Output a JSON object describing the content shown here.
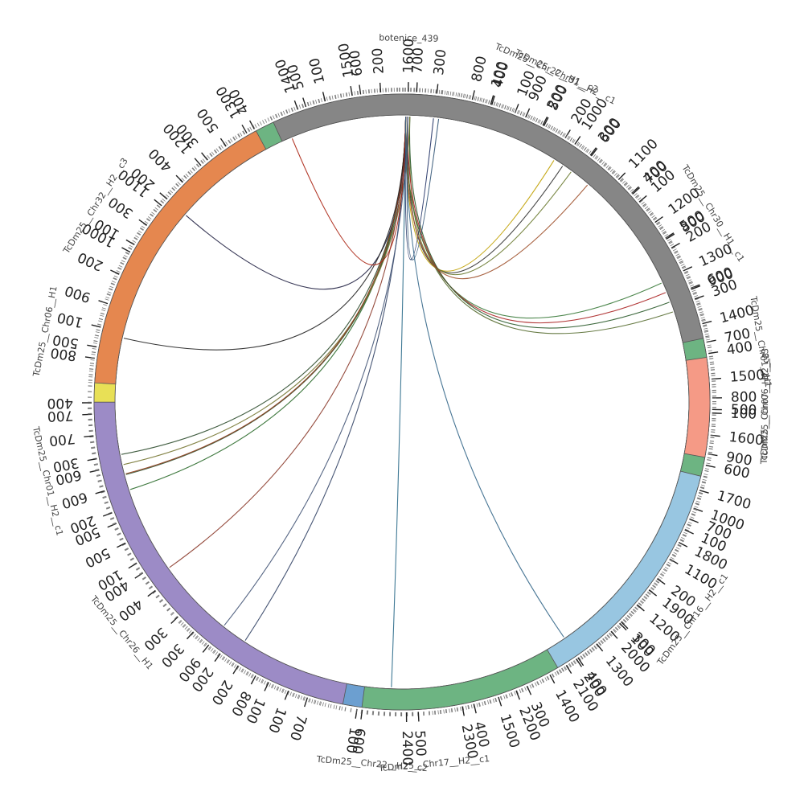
{
  "chart_data": {
    "type": "chord",
    "chromosomes": [
      {
        "name": "botenice_439",
        "length": 30,
        "color": "#a8c8e0",
        "ticks": []
      },
      {
        "name": "TcDm25__Chr06__H2__c3",
        "length": 1620,
        "color": "#fbf487",
        "ticks": [
          100,
          200,
          300,
          400,
          500,
          600,
          700,
          800,
          900,
          1000,
          1100,
          1200,
          1300,
          1400,
          1500
        ]
      },
      {
        "name": "TcDm25__Chr22__H2__c2",
        "length": 130,
        "color": "#9dd9a4",
        "ticks": [
          100
        ]
      },
      {
        "name": "TcDm25__Chr06__H1",
        "length": 1660,
        "color": "#bbb7d8",
        "ticks": [
          100,
          200,
          300,
          400,
          500,
          600,
          700,
          800,
          900,
          1000,
          1100,
          1200,
          1300,
          1400,
          1500,
          1600
        ]
      },
      {
        "name": "TcDm25__Chr22__H1__c2",
        "length": 240,
        "color": "#fbb375",
        "ticks": [
          100,
          200
        ]
      },
      {
        "name": "TcDm25__Chr01__H1",
        "length": 790,
        "color": "#b5b5b5",
        "ticks": [
          100,
          200,
          300,
          400,
          500,
          600,
          700
        ]
      },
      {
        "name": "TcDm25__Chr17__H2__c1",
        "length": 960,
        "color": "#6c9fd0",
        "ticks": [
          100,
          200,
          300,
          400,
          500,
          600,
          700,
          800,
          900
        ]
      },
      {
        "name": "TcDm25__Chr01__H2__c1",
        "length": 560,
        "color": "#e8e056",
        "ticks": [
          100,
          200,
          300,
          400,
          500
        ]
      },
      {
        "name": "TcDm25__Chr30__H1__c1",
        "length": 2480,
        "color": "#6db482",
        "ticks": [
          100,
          200,
          300,
          400,
          500,
          600,
          700,
          800,
          900,
          1000,
          1100,
          1200,
          1300,
          1400,
          1500,
          1600,
          1700,
          1800,
          1900,
          2000,
          2100,
          2200,
          2300,
          2400
        ]
      },
      {
        "name": "TcDm25__Chr26__H1",
        "length": 760,
        "color": "#9c8bc6",
        "ticks": [
          100,
          200,
          300,
          400,
          500,
          600,
          700
        ]
      },
      {
        "name": "TcDm25__Chr32__H2__c3",
        "length": 560,
        "color": "#e5874f",
        "ticks": [
          100,
          200,
          300,
          400,
          500
        ]
      },
      {
        "name": "TcDm25__Chr31__H2__c1",
        "length": 990,
        "color": "#868686",
        "ticks": [
          100,
          200,
          300,
          400,
          500,
          600,
          700,
          800,
          900
        ]
      },
      {
        "name": "TcDm25__Chr07__H2__c3",
        "length": 180,
        "color": "#f59a86",
        "ticks": [
          100
        ]
      },
      {
        "name": "TcDm25__Chr16__H2__c1",
        "length": 440,
        "color": "#98c6e1",
        "ticks": [
          100,
          200,
          300,
          400
        ]
      }
    ],
    "links": [
      {
        "from": "botenice_439",
        "to": "TcDm25__Chr06__H2__c3",
        "to_positions": [
          250,
          270,
          290
        ],
        "colors": [
          "#c0a000",
          "#333333",
          "#6a7a30"
        ]
      },
      {
        "from": "botenice_439",
        "to": "TcDm25__Chr06__H2__c3",
        "to_positions": [
          570,
          590,
          610,
          630
        ],
        "colors": [
          "#3a7a3a",
          "#aa2222",
          "#2a5a2a",
          "#556b2f"
        ]
      },
      {
        "from": "botenice_439",
        "to": "TcDm25__Chr22__H2__c2",
        "to_positions": [
          40
        ],
        "colors": [
          "#2a6a8a"
        ]
      },
      {
        "from": "botenice_439",
        "to": "TcDm25__Chr06__H1",
        "to_positions": [
          550,
          580,
          600,
          620
        ],
        "colors": [
          "#2a6a2a",
          "#335533",
          "#777733",
          "#2d4d2d"
        ]
      },
      {
        "from": "botenice_439",
        "to": "TcDm25__Chr06__H1",
        "to_positions": [
          1650,
          1660
        ],
        "colors": [
          "#223366",
          "#335577"
        ]
      },
      {
        "from": "botenice_439",
        "to": "TcDm25__Chr01__H1",
        "to_positions": [
          10
        ],
        "colors": [
          "#a0522d"
        ]
      },
      {
        "from": "botenice_439",
        "to": "TcDm25__Chr17__H2__c1",
        "to_positions": [
          850,
          900
        ],
        "colors": [
          "#334466",
          "#445577"
        ]
      },
      {
        "from": "botenice_439",
        "to": "TcDm25__Chr01__H2__c1",
        "to_positions": [
          60
        ],
        "colors": [
          "#8b3a2a"
        ]
      },
      {
        "from": "botenice_439",
        "to": "TcDm25__Chr30__H1__c1",
        "to_positions": [
          200
        ],
        "colors": [
          "#222244"
        ]
      },
      {
        "from": "botenice_439",
        "to": "TcDm25__Chr26__H1",
        "to_positions": [
          620
        ],
        "colors": [
          "#8b3a1a"
        ]
      },
      {
        "from": "botenice_439",
        "to": "TcDm25__Chr32__H2__c3",
        "to_positions": [
          90
        ],
        "colors": [
          "#222222"
        ]
      },
      {
        "from": "botenice_439",
        "to": "TcDm25__Chr31__H2__c1",
        "to_positions": [
          20
        ],
        "colors": [
          "#aa2211"
        ]
      },
      {
        "from": "botenice_439",
        "to": "TcDm25__Chr16__H2__c1",
        "to_positions": [
          400
        ],
        "colors": [
          "#336688"
        ]
      }
    ],
    "legend": "none"
  }
}
